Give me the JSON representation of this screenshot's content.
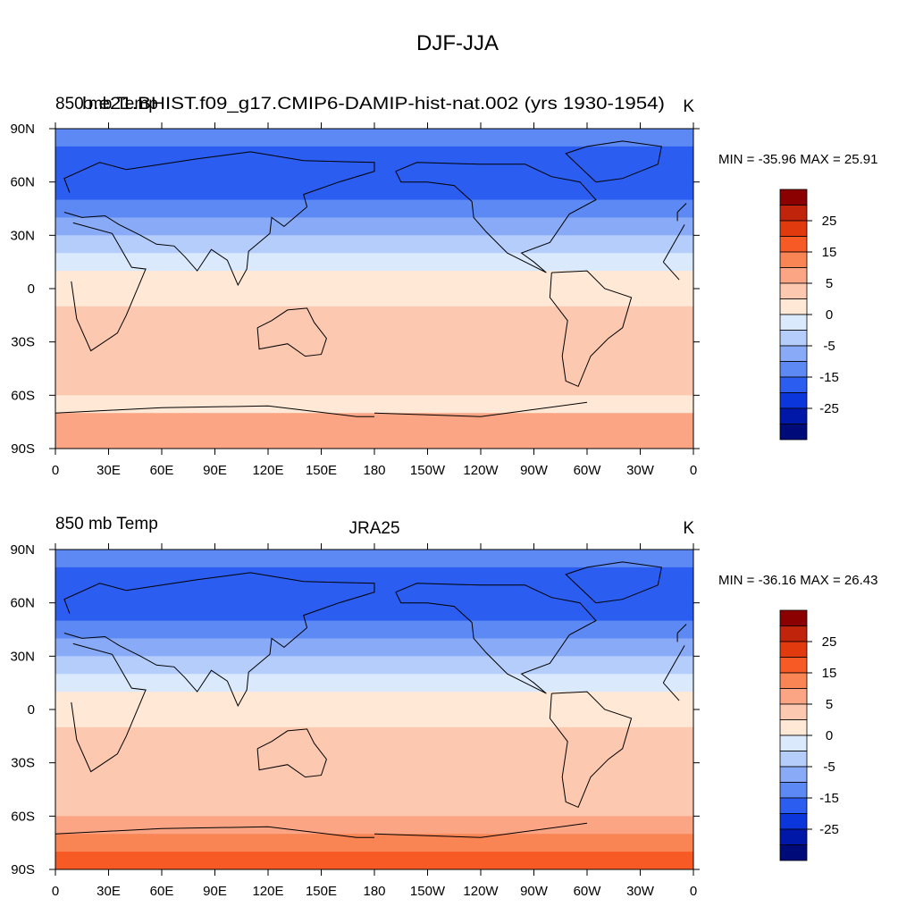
{
  "page_title": "DJF-JJA",
  "chart_data": [
    {
      "type": "heatmap",
      "left_title": "850 mb Temp",
      "center_title": "",
      "right_title": "K",
      "case_title": "b.e21.BHIST.f09_g17.CMIP6-DAMIP-hist-nat.002 (yrs 1930-1954)",
      "min": -35.96,
      "max": 25.91,
      "stats_label": "MIN = -35.96 MAX =  25.91",
      "xlim": [
        0,
        360
      ],
      "ylim": [
        -90,
        90
      ],
      "x_ticks": [
        "0",
        "30E",
        "60E",
        "90E",
        "120E",
        "150E",
        "180",
        "150W",
        "120W",
        "90W",
        "60W",
        "30W",
        "0"
      ],
      "y_ticks": [
        "90N",
        "60N",
        "30N",
        "0",
        "30S",
        "60S",
        "90S"
      ],
      "has_missing_data": true,
      "zonal_profile": [
        {
          "lat": 85,
          "value": -18
        },
        {
          "lat": 75,
          "value": -22
        },
        {
          "lat": 65,
          "value": -24
        },
        {
          "lat": 55,
          "value": -22
        },
        {
          "lat": 45,
          "value": -17
        },
        {
          "lat": 35,
          "value": -12
        },
        {
          "lat": 25,
          "value": -7
        },
        {
          "lat": 15,
          "value": -2
        },
        {
          "lat": 5,
          "value": 2
        },
        {
          "lat": -5,
          "value": 4
        },
        {
          "lat": -15,
          "value": 7
        },
        {
          "lat": -25,
          "value": 9
        },
        {
          "lat": -35,
          "value": 9
        },
        {
          "lat": -45,
          "value": 7
        },
        {
          "lat": -55,
          "value": 5
        },
        {
          "lat": -65,
          "value": 3
        },
        {
          "lat": -75,
          "value": 12
        },
        {
          "lat": -85,
          "value": 12
        }
      ]
    },
    {
      "type": "heatmap",
      "left_title": "850 mb Temp",
      "center_title": "JRA25",
      "right_title": "K",
      "case_title": "",
      "min": -36.16,
      "max": 26.43,
      "stats_label": "MIN = -36.16 MAX =  26.43",
      "xlim": [
        0,
        360
      ],
      "ylim": [
        -90,
        90
      ],
      "x_ticks": [
        "0",
        "30E",
        "60E",
        "90E",
        "120E",
        "150E",
        "180",
        "150W",
        "120W",
        "90W",
        "60W",
        "30W",
        "0"
      ],
      "y_ticks": [
        "90N",
        "60N",
        "30N",
        "0",
        "30S",
        "60S",
        "90S"
      ],
      "has_missing_data": false,
      "zonal_profile": [
        {
          "lat": 85,
          "value": -18
        },
        {
          "lat": 75,
          "value": -22
        },
        {
          "lat": 65,
          "value": -24
        },
        {
          "lat": 55,
          "value": -22
        },
        {
          "lat": 45,
          "value": -17
        },
        {
          "lat": 35,
          "value": -12
        },
        {
          "lat": 25,
          "value": -7
        },
        {
          "lat": 15,
          "value": -2
        },
        {
          "lat": 5,
          "value": 2
        },
        {
          "lat": -5,
          "value": 4
        },
        {
          "lat": -15,
          "value": 6
        },
        {
          "lat": -25,
          "value": 9
        },
        {
          "lat": -35,
          "value": 9
        },
        {
          "lat": -45,
          "value": 7
        },
        {
          "lat": -55,
          "value": 6
        },
        {
          "lat": -65,
          "value": 12
        },
        {
          "lat": -75,
          "value": 18
        },
        {
          "lat": -85,
          "value": 21
        }
      ]
    }
  ],
  "colorbar": {
    "levels": [
      -35,
      -30,
      -25,
      -20,
      -15,
      -10,
      -5,
      0,
      5,
      10,
      15,
      20,
      25,
      30
    ],
    "tick_labels": [
      "25",
      "15",
      "5",
      "0",
      "-5",
      "-15",
      "-25"
    ],
    "colors": [
      "#8b0000",
      "#c0240a",
      "#e23a0f",
      "#f85a26",
      "#f98454",
      "#fba585",
      "#fdc8b0",
      "#ffe8d6",
      "#dbe9fc",
      "#b5cdfb",
      "#89abf7",
      "#5c89f3",
      "#2a5df0",
      "#0a36dc",
      "#0018a8",
      "#000b7a"
    ]
  }
}
